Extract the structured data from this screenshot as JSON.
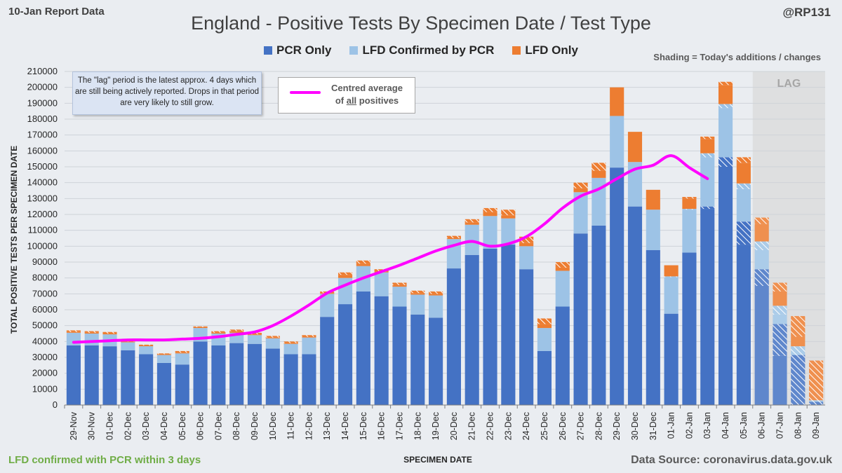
{
  "report_date": "10-Jan Report Data",
  "handle": "@RP131",
  "footer_left": "LFD confirmed with PCR within 3 days",
  "footer_right": "Data Source: coronavirus.data.gov.uk",
  "shading_note": "Shading = Today's additions / changes",
  "lag_note": "The \"lag\" period is the latest approx. 4 days which are still being actively reported. Drops in that period are very likely to still grow.",
  "avg_legend": {
    "line1": "Centred average",
    "line2_pre": "of ",
    "line2_ul": "all",
    "line2_post": " positives"
  },
  "colors": {
    "pcr": "#4472c4",
    "lfd_conf": "#9dc3e6",
    "lfd_only": "#ed7d31",
    "average": "#ff00ff",
    "lag_shade": "#d9d9d9"
  },
  "chart_data": {
    "type": "bar",
    "stacked": true,
    "title": "England - Positive Tests By Specimen Date / Test Type",
    "xlabel": "SPECIMEN DATE",
    "ylabel": "TOTAL POSITIVE TESTS PER SPECIMEN DATE",
    "ylim": [
      0,
      210000
    ],
    "yticks": [
      0,
      10000,
      20000,
      30000,
      40000,
      50000,
      60000,
      70000,
      80000,
      90000,
      100000,
      110000,
      120000,
      130000,
      140000,
      150000,
      160000,
      170000,
      180000,
      190000,
      200000,
      210000
    ],
    "grid": true,
    "legend_position": "top-center",
    "lag_region_label": "LAG",
    "lag_region_start": "06-Jan",
    "categories": [
      "29-Nov",
      "30-Nov",
      "01-Dec",
      "02-Dec",
      "03-Dec",
      "04-Dec",
      "05-Dec",
      "06-Dec",
      "07-Dec",
      "08-Dec",
      "09-Dec",
      "10-Dec",
      "11-Dec",
      "12-Dec",
      "13-Dec",
      "14-Dec",
      "15-Dec",
      "16-Dec",
      "17-Dec",
      "18-Dec",
      "19-Dec",
      "20-Dec",
      "21-Dec",
      "22-Dec",
      "23-Dec",
      "24-Dec",
      "25-Dec",
      "26-Dec",
      "27-Dec",
      "28-Dec",
      "29-Dec",
      "30-Dec",
      "31-Dec",
      "01-Jan",
      "02-Jan",
      "03-Jan",
      "04-Jan",
      "05-Jan",
      "06-Jan",
      "07-Jan",
      "08-Jan",
      "09-Jan"
    ],
    "series": [
      {
        "name": "PCR Only",
        "values": [
          37500,
          37500,
          37000,
          34500,
          32000,
          26500,
          25500,
          40000,
          37500,
          39000,
          38500,
          35500,
          32000,
          32000,
          55500,
          63500,
          71500,
          68500,
          62000,
          57000,
          55000,
          86000,
          94500,
          98500,
          101000,
          85500,
          34000,
          62000,
          108000,
          113000,
          149500,
          125000,
          97500,
          57500,
          96000,
          125000,
          156000,
          115500,
          85500,
          51000,
          31500,
          2000
        ]
      },
      {
        "name": "LFD Confirmed by PCR",
        "values": [
          8000,
          7500,
          7500,
          5000,
          5000,
          5000,
          7000,
          8500,
          7500,
          6500,
          5500,
          6500,
          6500,
          10500,
          14500,
          16500,
          16000,
          15000,
          12500,
          12500,
          14000,
          18500,
          19000,
          20500,
          16500,
          14500,
          14500,
          22500,
          26000,
          30000,
          32500,
          28000,
          25500,
          23500,
          27500,
          33500,
          33500,
          24000,
          17500,
          11500,
          5500,
          1000
        ]
      },
      {
        "name": "LFD Only",
        "values": [
          1500,
          1500,
          1500,
          1000,
          1000,
          1000,
          1500,
          1000,
          1500,
          2000,
          1500,
          1500,
          1500,
          1500,
          1500,
          3500,
          3500,
          2000,
          2500,
          2500,
          2500,
          2000,
          3500,
          5000,
          5500,
          6000,
          6000,
          5500,
          6000,
          9500,
          18000,
          19000,
          12500,
          7000,
          7500,
          10500,
          14000,
          16500,
          15000,
          14500,
          19000,
          25000
        ]
      }
    ],
    "changes_today": {
      "PCR Only": [
        0,
        0,
        0,
        0,
        0,
        0,
        0,
        0,
        0,
        0,
        0,
        0,
        0,
        0,
        0,
        0,
        0,
        0,
        0,
        0,
        0,
        0,
        0,
        0,
        0,
        0,
        0,
        0,
        0,
        0,
        0,
        0,
        0,
        0,
        0,
        1500,
        6000,
        14500,
        10500,
        20000,
        31500,
        2000
      ],
      "LFD Confirmed by PCR": [
        0,
        0,
        0,
        0,
        0,
        0,
        0,
        0,
        0,
        0,
        0,
        0,
        0,
        0,
        0,
        0,
        0,
        0,
        0,
        0,
        0,
        0,
        0,
        0,
        0,
        0,
        0,
        0,
        0,
        0,
        0,
        0,
        0,
        500,
        500,
        2500,
        2500,
        3500,
        5500,
        5500,
        5500,
        1000
      ],
      "LFD Only": [
        1000,
        1000,
        1000,
        500,
        500,
        500,
        1000,
        500,
        1000,
        1000,
        1000,
        1000,
        1000,
        1000,
        1000,
        1500,
        2000,
        1500,
        1500,
        1500,
        1500,
        1500,
        2000,
        2500,
        3500,
        4000,
        3500,
        3500,
        3500,
        5000,
        0,
        0,
        0,
        0,
        1000,
        1500,
        2000,
        3500,
        4000,
        5500,
        13000,
        25000
      ]
    },
    "average_series": {
      "name": "Centred average of all positives",
      "values": [
        39500,
        40000,
        40500,
        41000,
        41000,
        41000,
        41500,
        42000,
        43000,
        44500,
        46000,
        50000,
        56000,
        63000,
        70500,
        75500,
        80000,
        84000,
        88000,
        92500,
        97000,
        100500,
        103000,
        100000,
        101500,
        106000,
        114000,
        124000,
        131500,
        136000,
        142500,
        148500,
        151000,
        157000,
        149500,
        142500,
        null,
        null,
        null,
        null,
        null,
        null
      ]
    }
  }
}
